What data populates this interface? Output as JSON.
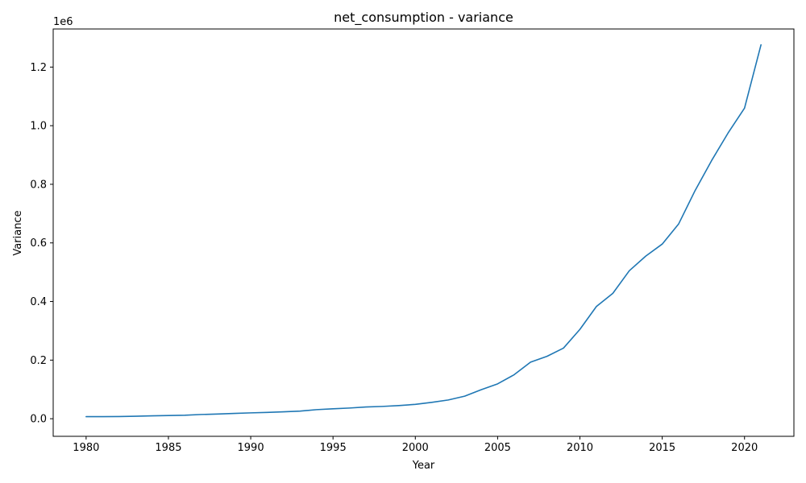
{
  "chart_data": {
    "type": "line",
    "title": "net_consumption - variance",
    "xlabel": "Year",
    "ylabel": "Variance",
    "y_offset_label": "1e6",
    "xlim": [
      1978,
      2023
    ],
    "ylim": [
      -60000,
      1330000
    ],
    "x_ticks": [
      1980,
      1985,
      1990,
      1995,
      2000,
      2005,
      2010,
      2015,
      2020
    ],
    "y_ticks": [
      0,
      200000,
      400000,
      600000,
      800000,
      1000000,
      1200000
    ],
    "y_tick_labels": [
      "0.0",
      "0.2",
      "0.4",
      "0.6",
      "0.8",
      "1.0",
      "1.2"
    ],
    "grid": false,
    "series": [
      {
        "color": "#1f77b4",
        "x": [
          1980,
          1981,
          1982,
          1983,
          1984,
          1985,
          1986,
          1987,
          1988,
          1989,
          1990,
          1991,
          1992,
          1993,
          1994,
          1995,
          1996,
          1997,
          1998,
          1999,
          2000,
          2001,
          2002,
          2003,
          2004,
          2005,
          2006,
          2007,
          2008,
          2009,
          2010,
          2011,
          2012,
          2013,
          2014,
          2015,
          2016,
          2017,
          2018,
          2019,
          2020,
          2021
        ],
        "y": [
          7000,
          7000,
          7500,
          8500,
          10000,
          11000,
          12000,
          14500,
          16000,
          18000,
          20000,
          21500,
          23500,
          26000,
          31000,
          34000,
          36500,
          40000,
          42000,
          45000,
          49000,
          56000,
          64000,
          77000,
          99000,
          119000,
          150000,
          193000,
          213000,
          241000,
          305000,
          383000,
          428000,
          505000,
          555000,
          596000,
          665000,
          779000,
          881000,
          975000,
          1060000,
          1276000
        ]
      }
    ]
  }
}
